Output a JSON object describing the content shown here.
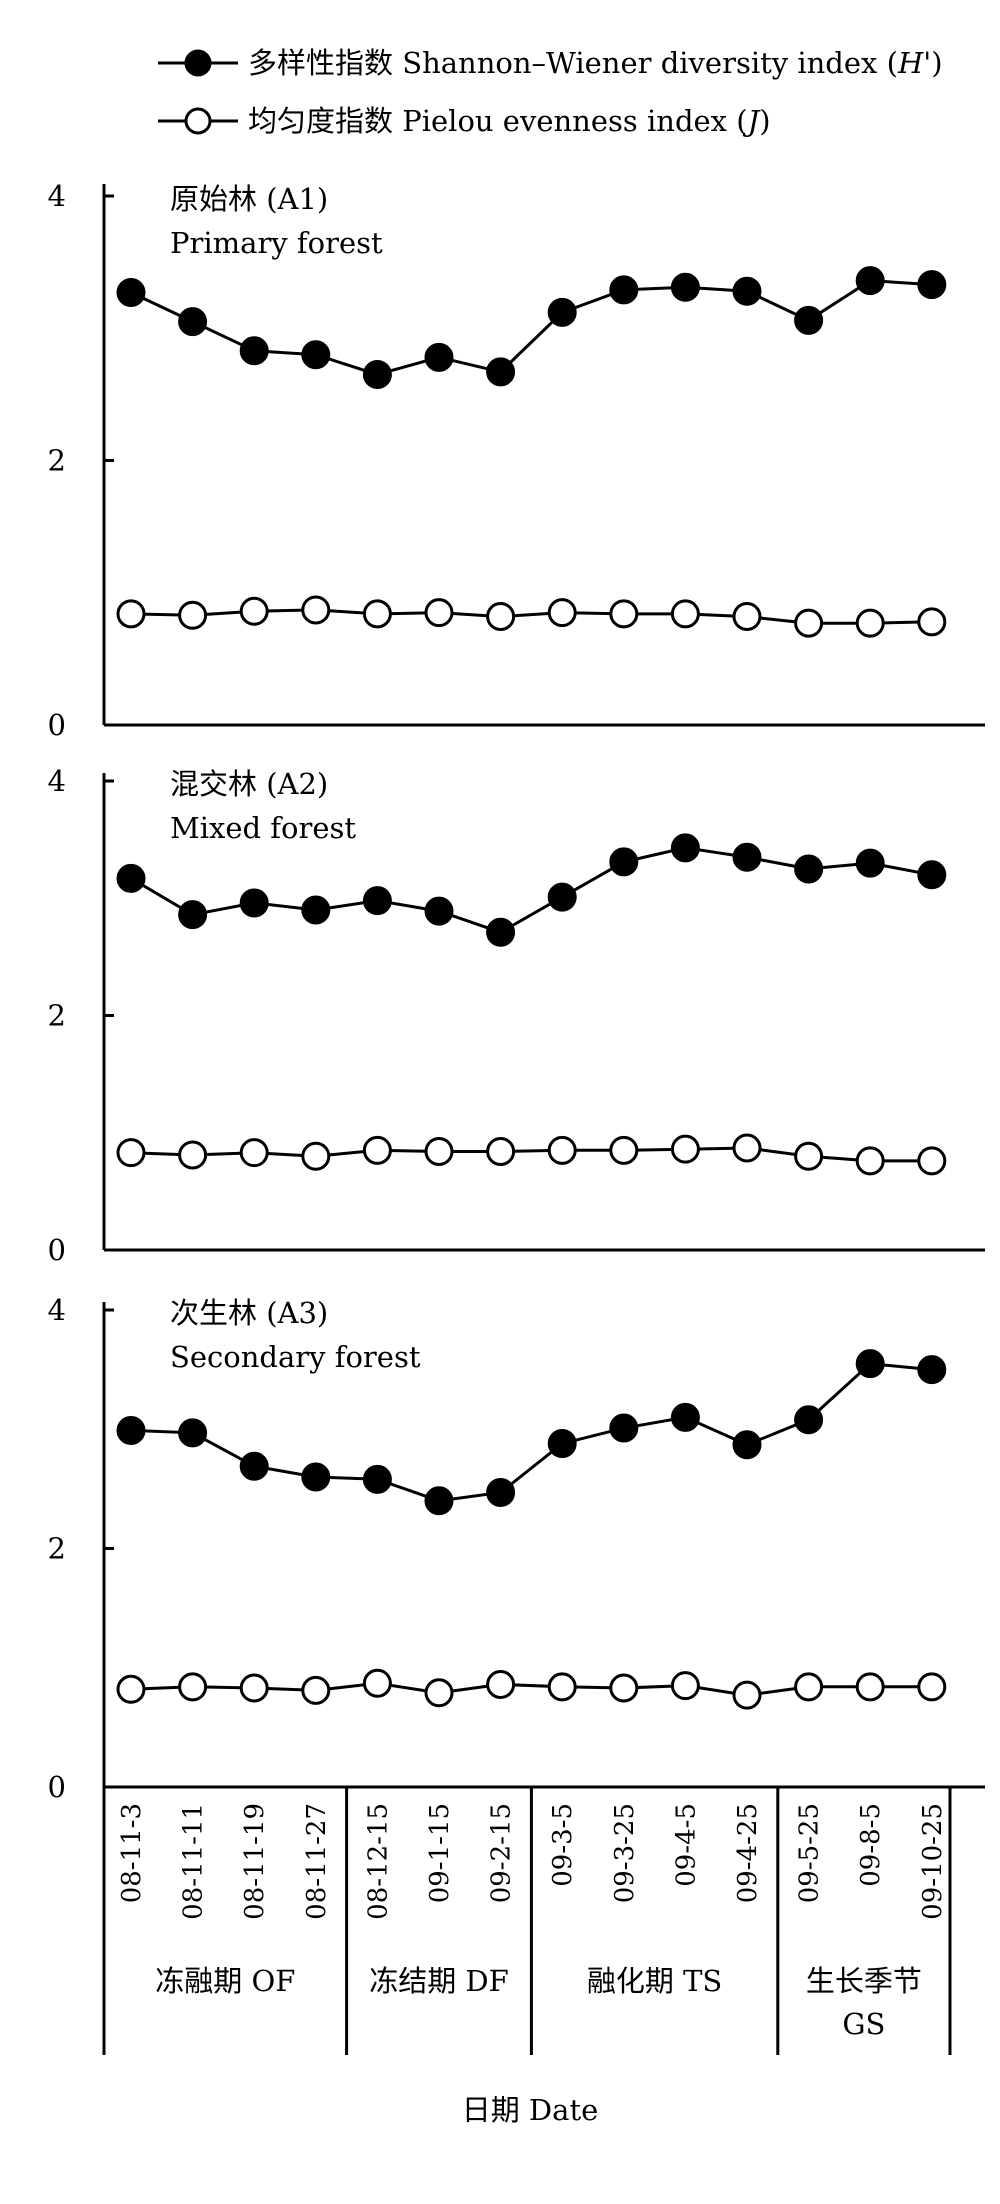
{
  "legend": [
    {
      "marker": "filled-circle",
      "label": "多样性指数 Shannon–Wiener diversity index (",
      "italic": "H'",
      "suffix": ")"
    },
    {
      "marker": "open-circle",
      "label": "均匀度指数 Pielou evenness index (",
      "italic": "J",
      "suffix": ")"
    }
  ],
  "xlabel": "日期 Date",
  "chart_data": [
    {
      "type": "line",
      "title": "原始林 (A1)",
      "subtitle": "Primary forest",
      "categories": [
        "08-11-3",
        "08-11-11",
        "08-11-19",
        "08-11-27",
        "08-12-15",
        "09-1-15",
        "09-2-15",
        "09-3-5",
        "09-3-25",
        "09-4-5",
        "09-4-25",
        "09-5-25",
        "09-8-5",
        "09-10-25"
      ],
      "ylim": [
        0,
        4
      ],
      "yticks": [
        "0",
        "2",
        "4"
      ],
      "series": [
        {
          "name": "多样性指数 Shannon–Wiener diversity index (H')",
          "marker": "filled",
          "values": [
            3.27,
            3.05,
            2.83,
            2.8,
            2.65,
            2.78,
            2.67,
            3.12,
            3.29,
            3.31,
            3.28,
            3.06,
            3.36,
            3.33
          ]
        },
        {
          "name": "均匀度指数 Pielou evenness index (J)",
          "marker": "open",
          "values": [
            0.84,
            0.83,
            0.86,
            0.87,
            0.84,
            0.85,
            0.82,
            0.85,
            0.84,
            0.84,
            0.82,
            0.77,
            0.77,
            0.78
          ]
        }
      ]
    },
    {
      "type": "line",
      "title": "混交林 (A2)",
      "subtitle": "Mixed forest",
      "categories": [
        "08-11-3",
        "08-11-11",
        "08-11-19",
        "08-11-27",
        "08-12-15",
        "09-1-15",
        "09-2-15",
        "09-3-5",
        "09-3-25",
        "09-4-5",
        "09-4-25",
        "09-5-25",
        "09-8-5",
        "09-10-25"
      ],
      "ylim": [
        0,
        4
      ],
      "yticks": [
        "0",
        "2",
        "4"
      ],
      "series": [
        {
          "name": "多样性指数 Shannon–Wiener diversity index (H')",
          "marker": "filled",
          "values": [
            3.17,
            2.86,
            2.96,
            2.9,
            2.98,
            2.89,
            2.71,
            3.01,
            3.31,
            3.43,
            3.35,
            3.25,
            3.3,
            3.2
          ]
        },
        {
          "name": "均匀度指数 Pielou evenness index (J)",
          "marker": "open",
          "values": [
            0.83,
            0.81,
            0.83,
            0.8,
            0.85,
            0.84,
            0.84,
            0.85,
            0.85,
            0.86,
            0.87,
            0.8,
            0.76,
            0.76
          ]
        }
      ]
    },
    {
      "type": "line",
      "title": "次生林 (A3)",
      "subtitle": "Secondary forest",
      "categories": [
        "08-11-3",
        "08-11-11",
        "08-11-19",
        "08-11-27",
        "08-12-15",
        "09-1-15",
        "09-2-15",
        "09-3-5",
        "09-3-25",
        "09-4-5",
        "09-4-25",
        "09-5-25",
        "09-8-5",
        "09-10-25"
      ],
      "ylim": [
        0,
        4
      ],
      "yticks": [
        "0",
        "2",
        "4"
      ],
      "series": [
        {
          "name": "多样性指数 Shannon–Wiener diversity index (H')",
          "marker": "filled",
          "values": [
            2.99,
            2.97,
            2.69,
            2.6,
            2.58,
            2.4,
            2.47,
            2.88,
            3.01,
            3.1,
            2.87,
            3.08,
            3.55,
            3.5
          ]
        },
        {
          "name": "均匀度指数 Pielou evenness index (J)",
          "marker": "open",
          "values": [
            0.82,
            0.84,
            0.83,
            0.81,
            0.87,
            0.79,
            0.86,
            0.84,
            0.83,
            0.85,
            0.77,
            0.84,
            0.84,
            0.84
          ]
        }
      ]
    }
  ],
  "periods": [
    {
      "label": "冻融期 OF",
      "count": 4
    },
    {
      "label": "冻结期 DF",
      "count": 3
    },
    {
      "label": "融化期 TS",
      "count": 4
    },
    {
      "label": "生长季节",
      "label2": "GS",
      "count": 3
    }
  ]
}
